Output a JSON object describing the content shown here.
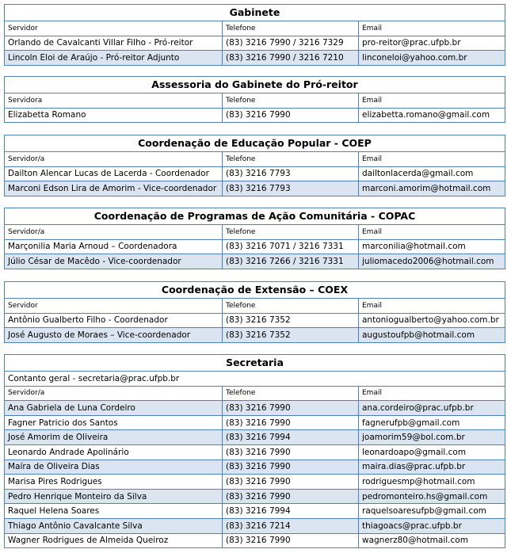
{
  "sections": [
    {
      "title": "Gabinete",
      "headers": [
        "Servidor",
        "Telefone",
        "Email"
      ],
      "rows": [
        [
          "Orlando de Cavalcanti Villar Filho - Pró-reitor",
          "(83) 3216 7990 / 3216 7329",
          "pro-reitor@prac.ufpb.br"
        ],
        [
          "Lincoln Eloi de Araújo - Pró-reitor Adjunto",
          "(83) 3216 7990 / 3216 7210",
          "linconeloi@yahoo.com.br"
        ]
      ]
    },
    {
      "title": "Assessoria do Gabinete do Pró-reitor",
      "headers": [
        "Servidora",
        "Telefone",
        "Email"
      ],
      "rows": [
        [
          "Elizabetta Romano",
          "(83) 3216 7990",
          "elizabetta.romano@gmail.com"
        ]
      ]
    },
    {
      "title": "Coordenação de Educação Popular - COEP",
      "headers": [
        "Servidor/a",
        "Telefone",
        "Email"
      ],
      "rows": [
        [
          "Dailton Alencar Lucas de Lacerda - Coordenador",
          "(83) 3216 7793",
          "dailtonlacerda@gmail.com"
        ],
        [
          "Marconi Edson Lira de Amorim - Vice-coordenador",
          "(83) 3216 7793",
          "marconi.amorim@hotmail.com"
        ]
      ]
    },
    {
      "title": "Coordenação de Programas de Ação Comunitária - COPAC",
      "headers": [
        "Servidor/a",
        "Telefone",
        "Email"
      ],
      "rows": [
        [
          "Marçonilia Maria Arnoud – Coordenadora",
          "(83) 3216 7071 / 3216 7331",
          "marconilia@hotmail.com"
        ],
        [
          "Júlio César de Macêdo - Vice-coordenador",
          "(83) 3216 7266 / 3216 7331",
          "juliomacedo2006@hotmail.com"
        ]
      ]
    },
    {
      "title": "Coordenação de Extensão – COEX",
      "headers": [
        "Servidor",
        "Telefone",
        "Email"
      ],
      "rows": [
        [
          "Antônio Gualberto Filho - Coordenador",
          "(83) 3216 7352",
          "antoniogualberto@yahoo.com.br"
        ],
        [
          "José Augusto de Moraes – Vice-coordenador",
          "(83) 3216 7352",
          "augustoufpb@hotmail.com"
        ]
      ]
    },
    {
      "title": "Secretaria",
      "note": "Contanto geral -  secretaria@prac.ufpb.br",
      "headers": [
        "Servidor/a",
        "Telefone",
        "Email"
      ],
      "rows": [
        [
          "Ana Gabriela de Luna Cordeiro",
          "(83) 3216 7990",
          "ana.cordeiro@prac.ufpb.br"
        ],
        [
          "Fagner Patricio dos Santos",
          "(83) 3216 7990",
          "fagnerufpb@gmail.com"
        ],
        [
          "José Amorim de Oliveira",
          "(83) 3216 7994",
          "joamorim59@bol.com.br"
        ],
        [
          "Leonardo Andrade Apolinário",
          "(83) 3216 7990",
          "leonardoapo@gmail.com"
        ],
        [
          "Maíra de Oliveira Dias",
          "(83) 3216 7990",
          "maira.dias@prac.ufpb.br"
        ],
        [
          "Marisa Pires Rodrigues",
          "(83) 3216 7990",
          "rodriguesmp@hotmail.com"
        ],
        [
          "Pedro Henrique Monteiro da Silva",
          "(83) 3216 7990",
          "pedromonteiro.hs@gmail.com"
        ],
        [
          "Raquel Helena Soares",
          "(83) 3216 7994",
          "raquelsoaresufpb@gmail.com"
        ],
        [
          "Thiago Antônio Cavalcante Silva",
          "(83) 3216 7214",
          "thiagoacs@prac.ufpb.br"
        ],
        [
          "Wagner Rodrigues de Almeida Queiroz",
          "(83) 3216 7990",
          "wagnerz80@hotmail.com"
        ]
      ]
    }
  ]
}
